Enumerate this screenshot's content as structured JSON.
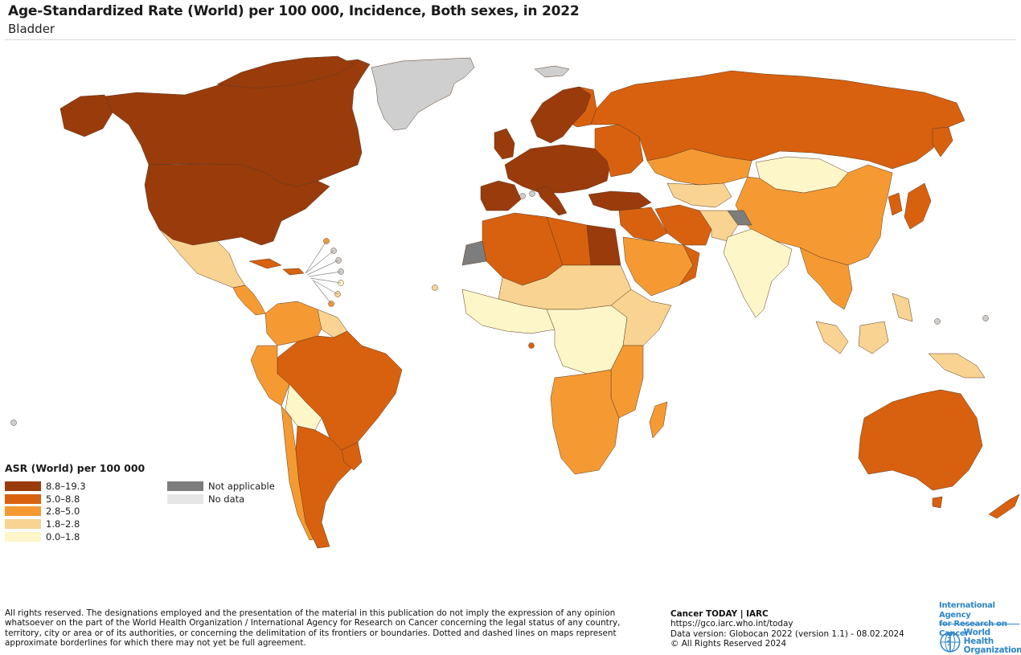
{
  "header": {
    "title": "Age-Standardized Rate (World) per 100 000, Incidence, Both sexes, in 2022",
    "subtitle": "Bladder"
  },
  "legend": {
    "title": "ASR (World) per 100 000",
    "classes": [
      {
        "label": "8.8–19.3",
        "color": "#9a3b0c"
      },
      {
        "label": "5.0–8.8",
        "color": "#d8610f"
      },
      {
        "label": "2.8–5.0",
        "color": "#f59a33"
      },
      {
        "label": "1.8–2.8",
        "color": "#f9d391"
      },
      {
        "label": "0.0–1.8",
        "color": "#fdf6c8"
      }
    ],
    "special": [
      {
        "label": "Not applicable",
        "color": "#7d7d7d"
      },
      {
        "label": "No data",
        "color": "#e6e6e6"
      }
    ]
  },
  "map": {
    "classes": {
      "c1": "#9a3b0c",
      "c2": "#d8610f",
      "c3": "#f59a33",
      "c4": "#f9d391",
      "c5": "#fdf6c8",
      "na": "#7d7d7d",
      "nodata": "#cfcfcf"
    }
  },
  "footer": {
    "disclaimer": "All rights reserved. The designations employed and the presentation of the material in this publication do not imply the expression of any opinion whatsoever on the part of the World Health Organization / International Agency for Research on Cancer concerning the legal status of any country, territory, city or area or of its authorities, or concerning the delimitation of its frontiers or boundaries. Dotted and dashed lines on maps represent approximate borderlines for which there may not yet be full agreement.",
    "source_title": "Cancer TODAY | IARC",
    "source_url": "https://gco.iarc.who.int/today",
    "data_version": "Data version: Globocan 2022 (version 1.1) - 08.02.2024",
    "copyright": "© All Rights Reserved 2024"
  },
  "logos": {
    "iarc_line1": "International Agency",
    "iarc_line2": "for Research on Cancer",
    "who_line1": "World Health",
    "who_line2": "Organization"
  }
}
